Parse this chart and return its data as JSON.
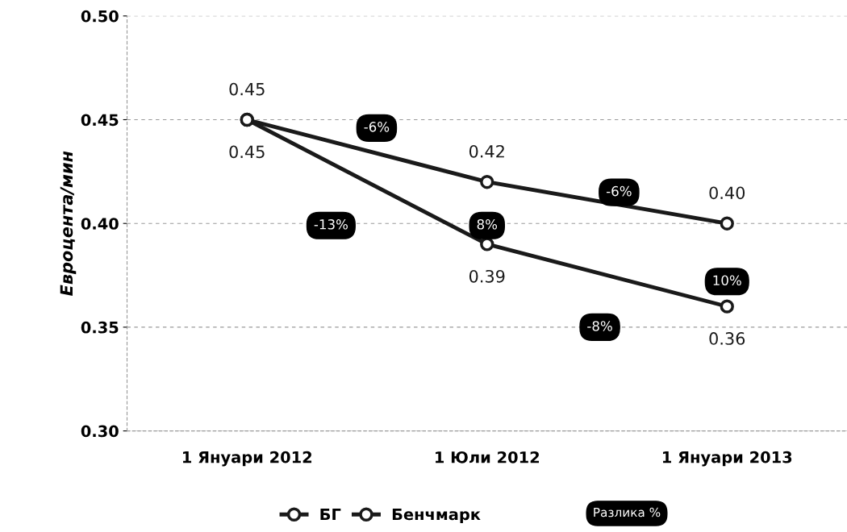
{
  "chart_data": {
    "type": "line",
    "ylabel": "Евроцента/мин",
    "categories": [
      "1 Януари 2012",
      "1 Юли 2012",
      "1 Януари 2013"
    ],
    "series": [
      {
        "name": "БГ",
        "color": "#1a1a1a",
        "values": [
          0.45,
          0.42,
          0.4
        ],
        "value_labels": [
          "0.45",
          "0.42",
          "0.40"
        ]
      },
      {
        "name": "Бенчмарк",
        "color": "#1a1a1a",
        "values": [
          0.45,
          0.39,
          0.36
        ],
        "value_labels": [
          "0.45",
          "0.39",
          "0.36"
        ]
      }
    ],
    "ylim": [
      0.3,
      0.5
    ],
    "yticks": [
      {
        "value": 0.3,
        "label": "0.30"
      },
      {
        "value": 0.35,
        "label": "0.35"
      },
      {
        "value": 0.4,
        "label": "0.40"
      },
      {
        "value": 0.45,
        "label": "0.45"
      },
      {
        "value": 0.5,
        "label": "0.50"
      }
    ],
    "grid": "y",
    "legend": "bottom",
    "marker": "circle",
    "line_style": "solid",
    "annotations": [
      "-6%",
      "-6%",
      "-13%",
      "8%",
      "10%",
      "-8%",
      "Разлика %"
    ]
  }
}
